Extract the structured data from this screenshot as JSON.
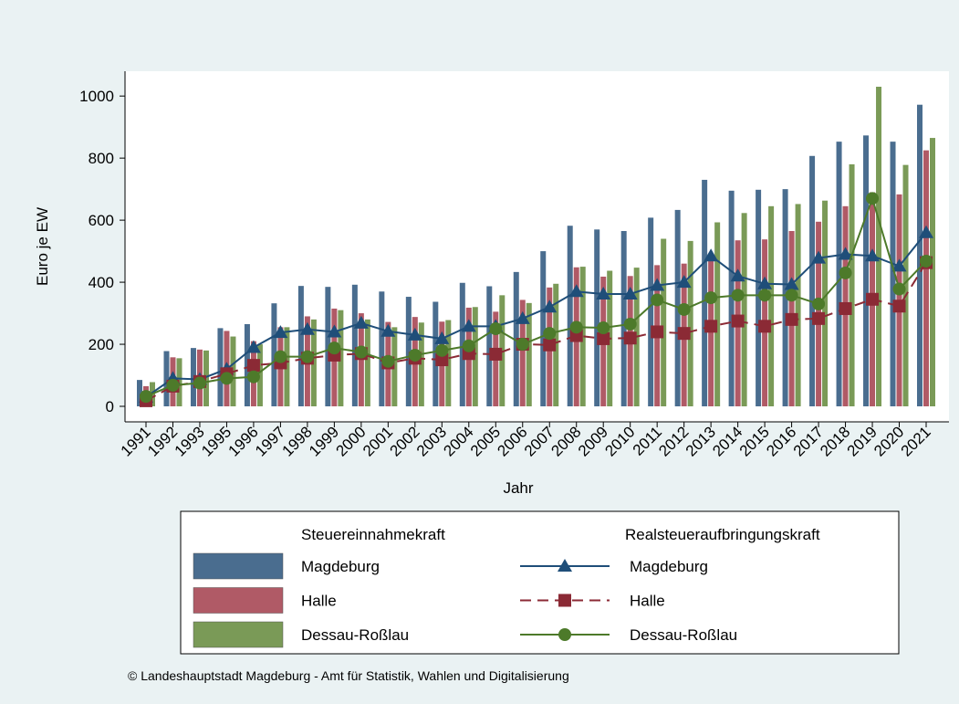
{
  "chart_data": {
    "type": "combo",
    "xlabel": "Jahr",
    "ylabel": "Euro je EW",
    "categories": [
      "1991",
      "1992",
      "1993",
      "1995",
      "1996",
      "1997",
      "1998",
      "1999",
      "2000",
      "2001",
      "2002",
      "2003",
      "2004",
      "2005",
      "2006",
      "2007",
      "2008",
      "2009",
      "2010",
      "2011",
      "2012",
      "2013",
      "2014",
      "2015",
      "2016",
      "2017",
      "2018",
      "2019",
      "2020",
      "2021"
    ],
    "ylim": [
      -50,
      1080
    ],
    "yticks": [
      0,
      200,
      400,
      600,
      800,
      1000
    ],
    "legend_groups": [
      "Steuereinnahmekraft",
      "Realsteueraufbringungskraft"
    ],
    "series": [
      {
        "name": "Magdeburg",
        "type": "bar",
        "group": 0,
        "color": "#4a6d8f",
        "values": [
          85,
          178,
          188,
          252,
          265,
          332,
          388,
          385,
          392,
          370,
          353,
          337,
          398,
          387,
          433,
          500,
          582,
          570,
          565,
          608,
          633,
          730,
          695,
          698,
          700,
          807,
          853,
          873,
          853,
          972
        ]
      },
      {
        "name": "Halle",
        "type": "bar",
        "group": 0,
        "color": "#b05a66",
        "values": [
          65,
          158,
          183,
          243,
          210,
          255,
          290,
          315,
          300,
          272,
          288,
          273,
          318,
          305,
          343,
          383,
          448,
          418,
          420,
          455,
          460,
          480,
          535,
          538,
          565,
          595,
          645,
          690,
          683,
          825
        ]
      },
      {
        "name": "Dessau-Roßlau",
        "type": "bar",
        "group": 0,
        "color": "#7a9a57",
        "values": [
          78,
          155,
          180,
          225,
          200,
          255,
          280,
          310,
          280,
          255,
          270,
          278,
          320,
          358,
          333,
          395,
          450,
          437,
          447,
          540,
          533,
          593,
          623,
          645,
          652,
          663,
          780,
          1030,
          778,
          865
        ]
      },
      {
        "name": "Magdeburg",
        "type": "line",
        "group": 1,
        "color": "#1f4e79",
        "marker": "triangle",
        "dash": false,
        "values": [
          30,
          90,
          87,
          120,
          190,
          238,
          248,
          240,
          268,
          242,
          230,
          218,
          258,
          258,
          283,
          320,
          370,
          362,
          362,
          390,
          400,
          485,
          420,
          395,
          393,
          478,
          490,
          485,
          452,
          560
        ]
      },
      {
        "name": "Halle",
        "type": "line",
        "group": 1,
        "color": "#8b2a35",
        "marker": "square",
        "dash": true,
        "values": [
          18,
          65,
          80,
          105,
          132,
          140,
          155,
          165,
          170,
          140,
          155,
          150,
          170,
          168,
          200,
          198,
          228,
          218,
          220,
          240,
          235,
          258,
          275,
          258,
          280,
          283,
          315,
          345,
          323,
          463
        ]
      },
      {
        "name": "Dessau-Roßlau",
        "type": "line",
        "group": 1,
        "color": "#4d7a2a",
        "marker": "circle",
        "dash": false,
        "values": [
          32,
          68,
          75,
          90,
          95,
          160,
          160,
          188,
          175,
          145,
          165,
          180,
          195,
          250,
          200,
          235,
          255,
          253,
          265,
          343,
          312,
          350,
          358,
          358,
          358,
          330,
          430,
          670,
          378,
          468
        ]
      }
    ],
    "source": "© Landeshauptstadt Magdeburg - Amt für Statistik, Wahlen und Digitalisierung"
  }
}
